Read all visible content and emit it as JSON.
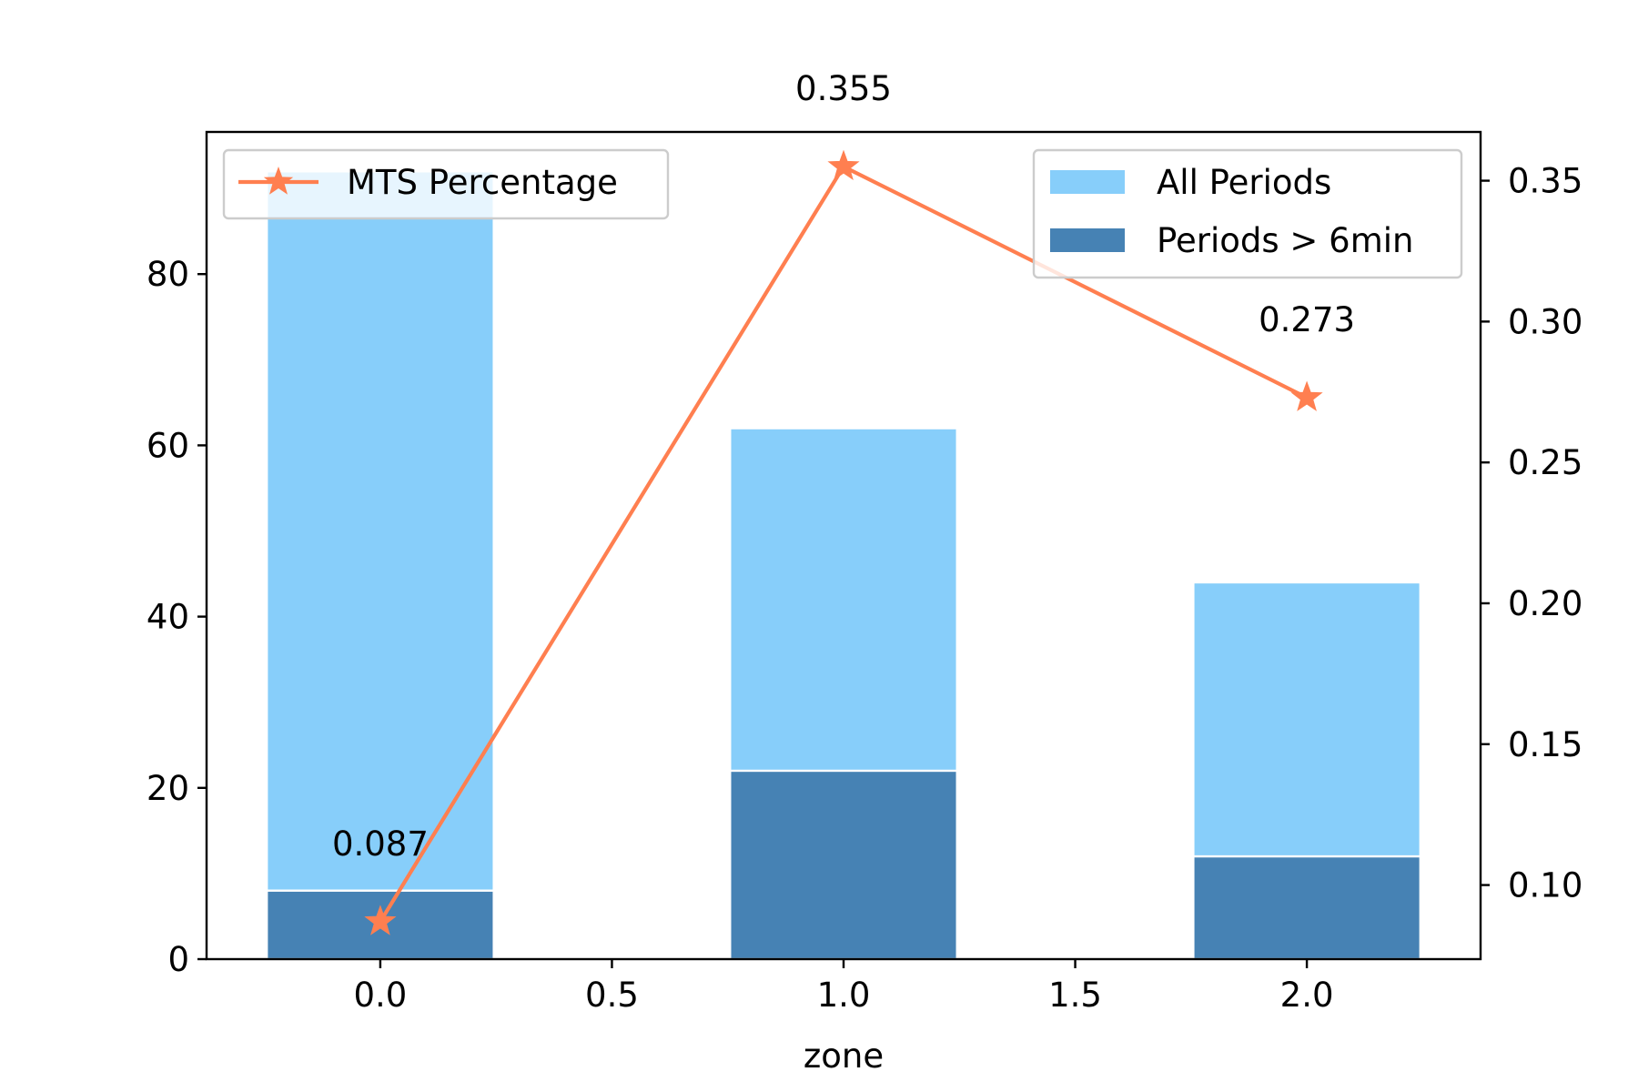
{
  "chart_data": {
    "type": "bar",
    "title": "",
    "xlabel": "zone",
    "ylabel": "",
    "y2label": "",
    "x_positions": [
      0,
      1,
      2
    ],
    "xlim": [
      -0.375,
      2.375
    ],
    "ylim": [
      0,
      96.6
    ],
    "y2lim": [
      0.0737,
      0.3673
    ],
    "x_ticks": [
      "0.0",
      "0.5",
      "1.0",
      "1.5",
      "2.0"
    ],
    "x_tick_values": [
      0,
      0.5,
      1,
      1.5,
      2
    ],
    "y_ticks": [
      "0",
      "20",
      "40",
      "60",
      "80"
    ],
    "y_tick_values": [
      0,
      20,
      40,
      60,
      80
    ],
    "y2_ticks": [
      "0.10",
      "0.15",
      "0.20",
      "0.25",
      "0.30",
      "0.35"
    ],
    "y2_tick_values": [
      0.1,
      0.15,
      0.2,
      0.25,
      0.3,
      0.35
    ],
    "grid": false,
    "series": [
      {
        "name": "All Periods",
        "kind": "bar",
        "axis": "left",
        "color": "#87CEFA",
        "values": [
          92,
          62,
          44
        ]
      },
      {
        "name": "Periods > 6min",
        "kind": "bar",
        "axis": "left",
        "color": "#4682B4",
        "values": [
          8,
          22,
          12
        ]
      },
      {
        "name": "MTS Percentage",
        "kind": "line",
        "axis": "right",
        "color": "#FF7F50",
        "marker": "star",
        "values": [
          0.087,
          0.355,
          0.273
        ]
      }
    ],
    "data_labels": [
      "0.087",
      "0.355",
      "0.273"
    ],
    "legends": [
      {
        "placement": "upper-left",
        "entries": [
          "MTS Percentage"
        ]
      },
      {
        "placement": "upper-right",
        "entries": [
          "All Periods",
          "Periods > 6min"
        ]
      }
    ]
  }
}
